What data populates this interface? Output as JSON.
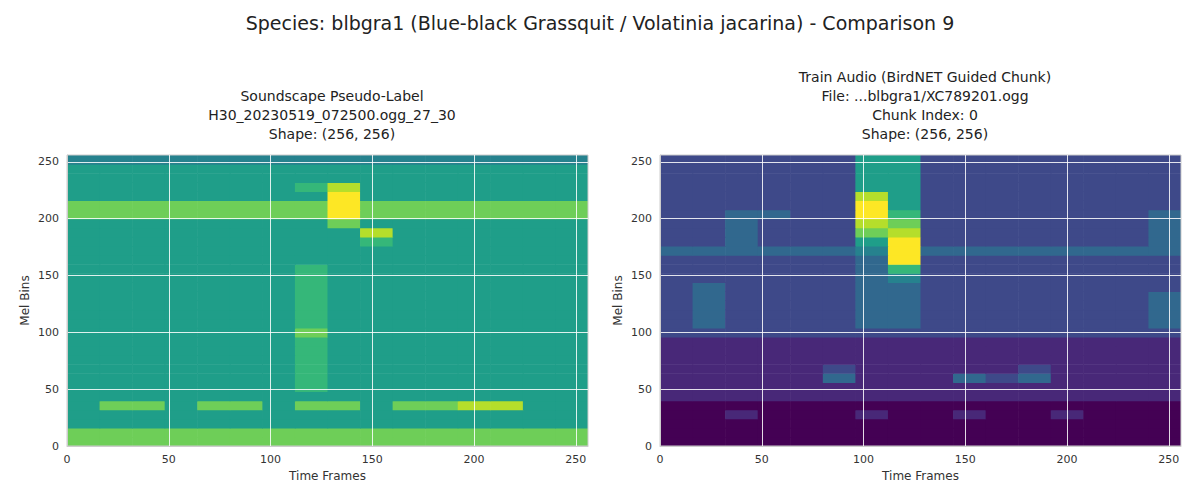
{
  "title": "Species: blbgra1 (Blue-black Grassquit / Volatinia jacarina) - Comparison 9",
  "chart_data": [
    {
      "type": "heatmap",
      "title": "Soundscape Pseudo-Label\nH30_20230519_072500.ogg_27_30\nShape: (256, 256)",
      "xlabel": "Time Frames",
      "ylabel": "Mel Bins",
      "xlim": [
        0,
        256
      ],
      "ylim": [
        0,
        256
      ],
      "xticks": [
        0,
        50,
        100,
        150,
        200,
        250
      ],
      "yticks": [
        0,
        50,
        100,
        150,
        200,
        250
      ],
      "grid": true,
      "zlim": [
        0,
        9
      ],
      "x_bins": [
        0,
        16,
        32,
        48,
        64,
        80,
        96,
        112,
        128,
        144,
        160,
        176,
        192,
        208,
        224,
        240,
        256
      ],
      "y_bins": [
        0,
        8,
        16,
        24,
        32,
        40,
        48,
        56,
        64,
        72,
        80,
        88,
        96,
        104,
        112,
        120,
        128,
        136,
        144,
        152,
        160,
        168,
        176,
        184,
        192,
        200,
        208,
        216,
        224,
        232,
        240,
        248,
        256
      ],
      "cells": [
        [
          7,
          7,
          7,
          7,
          7,
          7,
          7,
          7,
          7,
          7,
          7,
          7,
          7,
          7,
          7,
          7
        ],
        [
          7,
          7,
          7,
          7,
          7,
          7,
          7,
          7,
          7,
          7,
          7,
          7,
          7,
          7,
          7,
          7
        ],
        [
          5,
          5,
          5,
          5,
          5,
          5,
          5,
          5,
          5,
          5,
          5,
          5,
          5,
          5,
          5,
          5
        ],
        [
          5,
          5,
          5,
          5,
          5,
          5,
          5,
          5,
          5,
          5,
          5,
          5,
          5,
          5,
          5,
          5
        ],
        [
          5,
          7,
          7,
          5,
          7,
          7,
          5,
          7,
          7,
          5,
          7,
          7,
          8,
          8,
          5,
          5
        ],
        [
          5,
          5,
          5,
          5,
          5,
          5,
          5,
          5,
          5,
          5,
          5,
          5,
          5,
          5,
          5,
          5
        ],
        [
          5,
          5,
          5,
          5,
          5,
          5,
          5,
          6,
          5,
          5,
          5,
          5,
          5,
          5,
          5,
          5
        ],
        [
          5,
          5,
          5,
          5,
          5,
          5,
          5,
          6,
          5,
          5,
          5,
          5,
          5,
          5,
          5,
          5
        ],
        [
          5,
          5,
          5,
          5,
          5,
          5,
          5,
          6,
          5,
          5,
          5,
          5,
          5,
          5,
          5,
          5
        ],
        [
          5,
          5,
          5,
          5,
          5,
          5,
          5,
          6,
          5,
          5,
          5,
          5,
          5,
          5,
          5,
          5
        ],
        [
          5,
          5,
          5,
          5,
          5,
          5,
          5,
          6,
          5,
          5,
          5,
          5,
          5,
          5,
          5,
          5
        ],
        [
          5,
          5,
          5,
          5,
          5,
          5,
          5,
          6,
          5,
          5,
          5,
          5,
          5,
          5,
          5,
          5
        ],
        [
          5,
          5,
          5,
          5,
          5,
          5,
          5,
          7,
          5,
          5,
          5,
          5,
          5,
          5,
          5,
          5
        ],
        [
          5,
          5,
          5,
          5,
          5,
          5,
          5,
          6,
          5,
          5,
          5,
          5,
          5,
          5,
          5,
          5
        ],
        [
          5,
          5,
          5,
          5,
          5,
          5,
          5,
          6,
          5,
          5,
          5,
          5,
          5,
          5,
          5,
          5
        ],
        [
          5,
          5,
          5,
          5,
          5,
          5,
          5,
          6,
          5,
          5,
          5,
          5,
          5,
          5,
          5,
          5
        ],
        [
          5,
          5,
          5,
          5,
          5,
          5,
          5,
          6,
          5,
          5,
          5,
          5,
          5,
          5,
          5,
          5
        ],
        [
          5,
          5,
          5,
          5,
          5,
          5,
          5,
          6,
          5,
          5,
          5,
          5,
          5,
          5,
          5,
          5
        ],
        [
          5,
          5,
          5,
          5,
          5,
          5,
          5,
          6,
          5,
          5,
          5,
          5,
          5,
          5,
          5,
          5
        ],
        [
          5,
          5,
          5,
          5,
          5,
          5,
          5,
          6,
          5,
          5,
          5,
          5,
          5,
          5,
          5,
          5
        ],
        [
          5,
          5,
          5,
          5,
          5,
          5,
          5,
          5,
          5,
          5,
          5,
          5,
          5,
          5,
          5,
          5
        ],
        [
          5,
          5,
          5,
          5,
          5,
          5,
          5,
          5,
          5,
          5,
          5,
          5,
          5,
          5,
          5,
          5
        ],
        [
          5,
          5,
          5,
          5,
          5,
          5,
          5,
          5,
          5,
          6,
          5,
          5,
          5,
          5,
          5,
          5
        ],
        [
          5,
          5,
          5,
          5,
          5,
          5,
          5,
          5,
          5,
          8,
          5,
          5,
          5,
          5,
          5,
          5
        ],
        [
          5,
          5,
          5,
          5,
          5,
          5,
          5,
          5,
          7,
          5,
          5,
          5,
          5,
          5,
          5,
          5
        ],
        [
          7,
          7,
          7,
          7,
          7,
          7,
          7,
          7,
          9,
          7,
          7,
          7,
          7,
          7,
          7,
          7
        ],
        [
          7,
          7,
          7,
          7,
          7,
          7,
          7,
          7,
          9,
          7,
          7,
          7,
          7,
          7,
          7,
          7
        ],
        [
          5,
          5,
          5,
          5,
          5,
          5,
          5,
          5,
          9,
          5,
          5,
          5,
          5,
          5,
          5,
          5
        ],
        [
          5,
          5,
          5,
          5,
          5,
          5,
          5,
          6,
          8,
          5,
          5,
          5,
          5,
          5,
          5,
          5
        ],
        [
          5,
          5,
          5,
          5,
          5,
          5,
          5,
          5,
          5,
          5,
          5,
          5,
          5,
          5,
          5,
          5
        ],
        [
          5,
          5,
          5,
          5,
          5,
          5,
          5,
          5,
          5,
          5,
          5,
          5,
          5,
          5,
          5,
          5
        ],
        [
          4,
          4,
          4,
          4,
          4,
          4,
          4,
          4,
          4,
          4,
          4,
          4,
          4,
          4,
          4,
          4
        ]
      ]
    },
    {
      "type": "heatmap",
      "title": "Train Audio (BirdNET Guided Chunk)\nFile: ...blbgra1/XC789201.ogg\nChunk Index: 0\nShape: (256, 256)",
      "xlabel": "Time Frames",
      "ylabel": "Mel Bins",
      "xlim": [
        0,
        256
      ],
      "ylim": [
        0,
        256
      ],
      "xticks": [
        0,
        50,
        100,
        150,
        200,
        250
      ],
      "yticks": [
        0,
        50,
        100,
        150,
        200,
        250
      ],
      "grid": true,
      "zlim": [
        0,
        9
      ],
      "x_bins": [
        0,
        16,
        32,
        48,
        64,
        80,
        96,
        112,
        128,
        144,
        160,
        176,
        192,
        208,
        224,
        240,
        256
      ],
      "y_bins": [
        0,
        8,
        16,
        24,
        32,
        40,
        48,
        56,
        64,
        72,
        80,
        88,
        96,
        104,
        112,
        120,
        128,
        136,
        144,
        152,
        160,
        168,
        176,
        184,
        192,
        200,
        208,
        216,
        224,
        232,
        240,
        248,
        256
      ],
      "cells": [
        [
          0,
          0,
          0,
          0,
          0,
          0,
          0,
          0,
          0,
          0,
          0,
          0,
          0,
          0,
          0,
          0
        ],
        [
          0,
          0,
          0,
          0,
          0,
          0,
          0,
          0,
          0,
          0,
          0,
          0,
          0,
          0,
          0,
          0
        ],
        [
          0,
          0,
          0,
          0,
          0,
          0,
          0,
          0,
          0,
          0,
          0,
          0,
          0,
          0,
          0,
          0
        ],
        [
          0,
          0,
          1,
          0,
          0,
          0,
          1,
          0,
          0,
          1,
          0,
          0,
          1,
          0,
          0,
          0
        ],
        [
          0,
          0,
          0,
          0,
          0,
          0,
          0,
          0,
          0,
          0,
          0,
          0,
          0,
          0,
          0,
          0
        ],
        [
          1,
          1,
          1,
          1,
          1,
          1,
          1,
          1,
          1,
          1,
          1,
          1,
          1,
          1,
          1,
          1
        ],
        [
          1,
          1,
          1,
          1,
          1,
          1,
          1,
          1,
          1,
          1,
          1,
          1,
          1,
          1,
          1,
          1
        ],
        [
          1,
          1,
          1,
          1,
          1,
          3,
          1,
          1,
          1,
          3,
          2,
          3,
          1,
          1,
          1,
          1
        ],
        [
          1,
          1,
          1,
          1,
          1,
          2,
          1,
          1,
          1,
          1,
          1,
          2,
          1,
          1,
          1,
          1
        ],
        [
          1,
          1,
          1,
          1,
          1,
          1,
          1,
          1,
          1,
          1,
          1,
          1,
          1,
          1,
          1,
          1
        ],
        [
          1,
          1,
          1,
          1,
          1,
          1,
          1,
          1,
          1,
          1,
          1,
          1,
          1,
          1,
          1,
          1
        ],
        [
          1,
          1,
          1,
          1,
          1,
          1,
          1,
          1,
          1,
          1,
          1,
          1,
          1,
          1,
          1,
          1
        ],
        [
          2,
          2,
          2,
          2,
          2,
          2,
          2,
          2,
          2,
          2,
          2,
          2,
          2,
          2,
          2,
          2
        ],
        [
          2,
          3,
          2,
          2,
          2,
          2,
          3,
          3,
          2,
          2,
          2,
          2,
          2,
          2,
          2,
          3
        ],
        [
          2,
          3,
          2,
          2,
          2,
          2,
          3,
          3,
          2,
          2,
          2,
          2,
          2,
          2,
          2,
          3
        ],
        [
          2,
          3,
          2,
          2,
          2,
          2,
          3,
          3,
          2,
          2,
          2,
          2,
          2,
          2,
          2,
          3
        ],
        [
          2,
          3,
          2,
          2,
          2,
          2,
          3,
          3,
          2,
          2,
          2,
          2,
          2,
          2,
          2,
          3
        ],
        [
          2,
          3,
          2,
          2,
          2,
          2,
          3,
          3,
          2,
          2,
          2,
          2,
          2,
          2,
          2,
          2
        ],
        [
          2,
          2,
          2,
          2,
          2,
          2,
          3,
          4,
          2,
          2,
          2,
          2,
          2,
          2,
          2,
          2
        ],
        [
          2,
          2,
          2,
          2,
          2,
          2,
          3,
          6,
          2,
          2,
          2,
          2,
          2,
          2,
          2,
          2
        ],
        [
          2,
          2,
          2,
          2,
          2,
          2,
          3,
          9,
          2,
          2,
          2,
          2,
          2,
          2,
          2,
          2
        ],
        [
          3,
          3,
          3,
          3,
          3,
          3,
          4,
          9,
          3,
          3,
          3,
          3,
          3,
          3,
          3,
          3
        ],
        [
          2,
          2,
          3,
          2,
          2,
          2,
          5,
          9,
          2,
          2,
          2,
          2,
          2,
          2,
          2,
          3
        ],
        [
          2,
          2,
          3,
          2,
          2,
          2,
          7,
          8,
          2,
          2,
          2,
          2,
          2,
          2,
          2,
          3
        ],
        [
          2,
          2,
          3,
          2,
          2,
          2,
          8,
          7,
          2,
          2,
          2,
          2,
          2,
          2,
          2,
          3
        ],
        [
          2,
          2,
          3,
          3,
          2,
          2,
          9,
          6,
          2,
          2,
          2,
          2,
          2,
          2,
          2,
          3
        ],
        [
          2,
          2,
          2,
          2,
          2,
          2,
          9,
          5,
          2,
          2,
          2,
          2,
          2,
          2,
          2,
          2
        ],
        [
          2,
          2,
          2,
          2,
          2,
          2,
          8,
          5,
          2,
          2,
          2,
          2,
          2,
          2,
          2,
          2
        ],
        [
          2,
          2,
          2,
          2,
          2,
          2,
          5,
          5,
          2,
          2,
          2,
          2,
          2,
          2,
          2,
          2
        ],
        [
          2,
          2,
          2,
          2,
          2,
          2,
          5,
          5,
          2,
          2,
          2,
          2,
          2,
          2,
          2,
          2
        ],
        [
          2,
          2,
          2,
          2,
          2,
          2,
          5,
          5,
          2,
          2,
          2,
          2,
          2,
          2,
          2,
          2
        ],
        [
          2,
          2,
          2,
          2,
          2,
          2,
          5,
          5,
          2,
          2,
          2,
          2,
          2,
          2,
          2,
          2
        ]
      ]
    }
  ]
}
